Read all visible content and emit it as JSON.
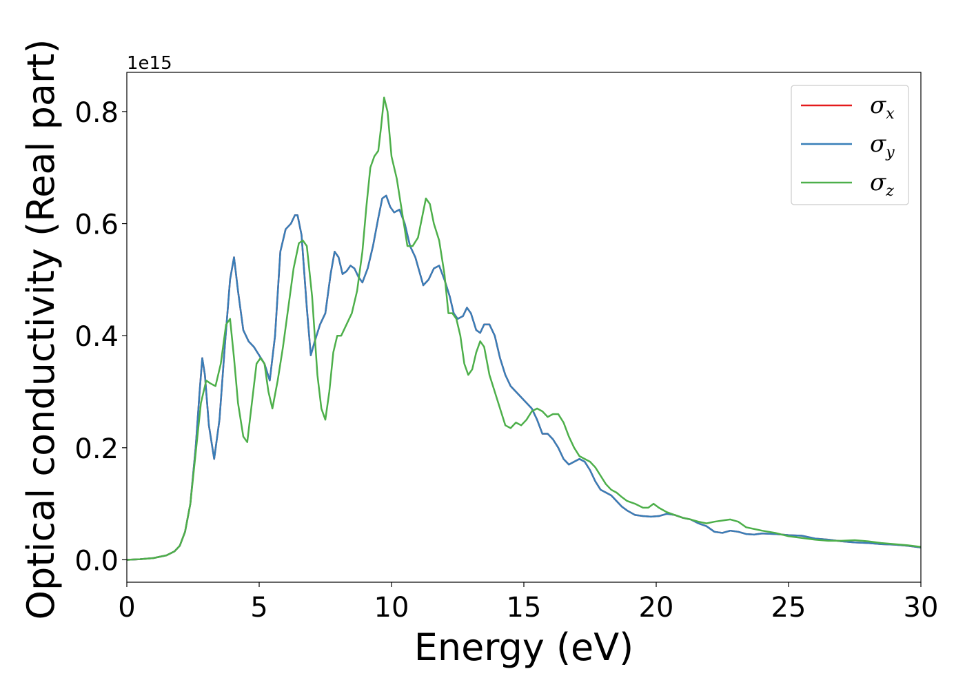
{
  "chart_data": {
    "type": "line",
    "title": "",
    "xlabel": "Energy (eV)",
    "ylabel": "Optical conductivity (Real part)",
    "y_offset_label": "1e15",
    "xlim": [
      0,
      30
    ],
    "ylim": [
      -0.04,
      0.87
    ],
    "xticks": [
      0,
      5,
      10,
      15,
      20,
      25,
      30
    ],
    "xtick_labels": [
      "0",
      "5",
      "10",
      "15",
      "20",
      "25",
      "30"
    ],
    "yticks": [
      0.0,
      0.2,
      0.4,
      0.6,
      0.8
    ],
    "ytick_labels": [
      "0.0",
      "0.2",
      "0.4",
      "0.6",
      "0.8"
    ],
    "grid": false,
    "legend_position": "top-right",
    "series": [
      {
        "name": "σx",
        "symbol": "σ",
        "subscript": "x",
        "color": "#e41a1c",
        "x": [
          0,
          0.5,
          1.0,
          1.5,
          1.8,
          2.0,
          2.2,
          2.4,
          2.6,
          2.75,
          2.85,
          2.95,
          3.1,
          3.3,
          3.5,
          3.7,
          3.9,
          4.05,
          4.2,
          4.4,
          4.6,
          4.8,
          5.0,
          5.2,
          5.4,
          5.6,
          5.8,
          6.0,
          6.2,
          6.35,
          6.45,
          6.6,
          6.8,
          6.95,
          7.1,
          7.3,
          7.5,
          7.7,
          7.85,
          8.0,
          8.15,
          8.3,
          8.45,
          8.6,
          8.75,
          8.9,
          9.1,
          9.3,
          9.5,
          9.65,
          9.8,
          9.95,
          10.1,
          10.3,
          10.5,
          10.7,
          10.9,
          11.05,
          11.2,
          11.4,
          11.6,
          11.8,
          12.0,
          12.2,
          12.35,
          12.5,
          12.7,
          12.85,
          13.0,
          13.2,
          13.35,
          13.5,
          13.7,
          13.9,
          14.1,
          14.3,
          14.5,
          14.7,
          14.9,
          15.1,
          15.3,
          15.5,
          15.7,
          15.9,
          16.1,
          16.3,
          16.5,
          16.7,
          16.9,
          17.1,
          17.3,
          17.5,
          17.7,
          17.9,
          18.1,
          18.3,
          18.5,
          18.7,
          18.9,
          19.2,
          19.5,
          19.8,
          20.1,
          20.4,
          20.7,
          21.0,
          21.3,
          21.6,
          21.9,
          22.2,
          22.5,
          22.8,
          23.1,
          23.4,
          23.7,
          24.0,
          24.5,
          25.0,
          25.5,
          26.0,
          26.5,
          27.0,
          27.5,
          28.0,
          28.5,
          29.0,
          29.5,
          30.0
        ],
        "y": [
          0.0,
          0.001,
          0.003,
          0.008,
          0.015,
          0.025,
          0.05,
          0.1,
          0.2,
          0.3,
          0.36,
          0.33,
          0.24,
          0.18,
          0.25,
          0.38,
          0.5,
          0.54,
          0.48,
          0.41,
          0.39,
          0.38,
          0.365,
          0.35,
          0.32,
          0.4,
          0.55,
          0.59,
          0.6,
          0.615,
          0.615,
          0.58,
          0.45,
          0.365,
          0.39,
          0.42,
          0.44,
          0.51,
          0.55,
          0.54,
          0.51,
          0.515,
          0.525,
          0.52,
          0.505,
          0.495,
          0.52,
          0.56,
          0.61,
          0.645,
          0.65,
          0.63,
          0.62,
          0.625,
          0.6,
          0.56,
          0.54,
          0.515,
          0.49,
          0.5,
          0.52,
          0.525,
          0.5,
          0.47,
          0.44,
          0.43,
          0.435,
          0.45,
          0.44,
          0.41,
          0.405,
          0.42,
          0.42,
          0.4,
          0.36,
          0.33,
          0.31,
          0.3,
          0.29,
          0.28,
          0.27,
          0.25,
          0.225,
          0.225,
          0.215,
          0.2,
          0.18,
          0.17,
          0.175,
          0.18,
          0.175,
          0.16,
          0.14,
          0.125,
          0.12,
          0.115,
          0.105,
          0.095,
          0.088,
          0.08,
          0.078,
          0.077,
          0.078,
          0.082,
          0.08,
          0.075,
          0.072,
          0.065,
          0.06,
          0.05,
          0.048,
          0.052,
          0.05,
          0.046,
          0.045,
          0.047,
          0.046,
          0.044,
          0.043,
          0.038,
          0.036,
          0.033,
          0.031,
          0.03,
          0.028,
          0.027,
          0.025,
          0.022
        ]
      },
      {
        "name": "σy",
        "symbol": "σ",
        "subscript": "y",
        "color": "#377eb8",
        "x": [
          0,
          0.5,
          1.0,
          1.5,
          1.8,
          2.0,
          2.2,
          2.4,
          2.6,
          2.75,
          2.85,
          2.95,
          3.1,
          3.3,
          3.5,
          3.7,
          3.9,
          4.05,
          4.2,
          4.4,
          4.6,
          4.8,
          5.0,
          5.2,
          5.4,
          5.6,
          5.8,
          6.0,
          6.2,
          6.35,
          6.45,
          6.6,
          6.8,
          6.95,
          7.1,
          7.3,
          7.5,
          7.7,
          7.85,
          8.0,
          8.15,
          8.3,
          8.45,
          8.6,
          8.75,
          8.9,
          9.1,
          9.3,
          9.5,
          9.65,
          9.8,
          9.95,
          10.1,
          10.3,
          10.5,
          10.7,
          10.9,
          11.05,
          11.2,
          11.4,
          11.6,
          11.8,
          12.0,
          12.2,
          12.35,
          12.5,
          12.7,
          12.85,
          13.0,
          13.2,
          13.35,
          13.5,
          13.7,
          13.9,
          14.1,
          14.3,
          14.5,
          14.7,
          14.9,
          15.1,
          15.3,
          15.5,
          15.7,
          15.9,
          16.1,
          16.3,
          16.5,
          16.7,
          16.9,
          17.1,
          17.3,
          17.5,
          17.7,
          17.9,
          18.1,
          18.3,
          18.5,
          18.7,
          18.9,
          19.2,
          19.5,
          19.8,
          20.1,
          20.4,
          20.7,
          21.0,
          21.3,
          21.6,
          21.9,
          22.2,
          22.5,
          22.8,
          23.1,
          23.4,
          23.7,
          24.0,
          24.5,
          25.0,
          25.5,
          26.0,
          26.5,
          27.0,
          27.5,
          28.0,
          28.5,
          29.0,
          29.5,
          30.0
        ],
        "y": [
          0.0,
          0.001,
          0.003,
          0.008,
          0.015,
          0.025,
          0.05,
          0.1,
          0.2,
          0.3,
          0.36,
          0.33,
          0.24,
          0.18,
          0.25,
          0.38,
          0.5,
          0.54,
          0.48,
          0.41,
          0.39,
          0.38,
          0.365,
          0.35,
          0.32,
          0.4,
          0.55,
          0.59,
          0.6,
          0.615,
          0.615,
          0.58,
          0.45,
          0.365,
          0.39,
          0.42,
          0.44,
          0.51,
          0.55,
          0.54,
          0.51,
          0.515,
          0.525,
          0.52,
          0.505,
          0.495,
          0.52,
          0.56,
          0.61,
          0.645,
          0.65,
          0.63,
          0.62,
          0.625,
          0.6,
          0.56,
          0.54,
          0.515,
          0.49,
          0.5,
          0.52,
          0.525,
          0.5,
          0.47,
          0.44,
          0.43,
          0.435,
          0.45,
          0.44,
          0.41,
          0.405,
          0.42,
          0.42,
          0.4,
          0.36,
          0.33,
          0.31,
          0.3,
          0.29,
          0.28,
          0.27,
          0.25,
          0.225,
          0.225,
          0.215,
          0.2,
          0.18,
          0.17,
          0.175,
          0.18,
          0.175,
          0.16,
          0.14,
          0.125,
          0.12,
          0.115,
          0.105,
          0.095,
          0.088,
          0.08,
          0.078,
          0.077,
          0.078,
          0.082,
          0.08,
          0.075,
          0.072,
          0.065,
          0.06,
          0.05,
          0.048,
          0.052,
          0.05,
          0.046,
          0.045,
          0.047,
          0.046,
          0.044,
          0.043,
          0.038,
          0.036,
          0.033,
          0.031,
          0.03,
          0.028,
          0.027,
          0.025,
          0.022
        ]
      },
      {
        "name": "σz",
        "symbol": "σ",
        "subscript": "z",
        "color": "#4daf4a",
        "x": [
          0,
          0.5,
          1.0,
          1.5,
          1.8,
          2.0,
          2.2,
          2.4,
          2.6,
          2.8,
          3.0,
          3.15,
          3.35,
          3.55,
          3.75,
          3.9,
          4.05,
          4.2,
          4.4,
          4.55,
          4.75,
          4.9,
          5.05,
          5.2,
          5.35,
          5.5,
          5.7,
          5.9,
          6.1,
          6.3,
          6.5,
          6.65,
          6.8,
          7.0,
          7.2,
          7.35,
          7.5,
          7.65,
          7.8,
          7.95,
          8.1,
          8.3,
          8.5,
          8.7,
          8.9,
          9.05,
          9.2,
          9.35,
          9.5,
          9.6,
          9.72,
          9.85,
          10.0,
          10.2,
          10.4,
          10.6,
          10.8,
          11.0,
          11.15,
          11.3,
          11.45,
          11.6,
          11.8,
          12.0,
          12.15,
          12.3,
          12.45,
          12.6,
          12.75,
          12.9,
          13.05,
          13.2,
          13.35,
          13.5,
          13.7,
          13.9,
          14.1,
          14.3,
          14.5,
          14.7,
          14.9,
          15.1,
          15.3,
          15.5,
          15.7,
          15.9,
          16.1,
          16.3,
          16.5,
          16.7,
          16.9,
          17.1,
          17.3,
          17.5,
          17.7,
          17.9,
          18.1,
          18.3,
          18.5,
          18.7,
          18.9,
          19.2,
          19.5,
          19.7,
          19.9,
          20.1,
          20.4,
          20.7,
          21.0,
          21.3,
          21.6,
          21.9,
          22.2,
          22.5,
          22.8,
          23.1,
          23.4,
          23.7,
          24.0,
          24.5,
          25.0,
          25.5,
          26.0,
          26.5,
          27.0,
          27.5,
          28.0,
          28.5,
          29.0,
          29.5,
          30.0
        ],
        "y": [
          0.0,
          0.001,
          0.003,
          0.008,
          0.015,
          0.025,
          0.05,
          0.1,
          0.19,
          0.28,
          0.32,
          0.315,
          0.31,
          0.35,
          0.42,
          0.43,
          0.36,
          0.28,
          0.22,
          0.21,
          0.29,
          0.35,
          0.36,
          0.35,
          0.3,
          0.27,
          0.32,
          0.38,
          0.45,
          0.52,
          0.565,
          0.57,
          0.56,
          0.47,
          0.33,
          0.27,
          0.25,
          0.3,
          0.37,
          0.4,
          0.4,
          0.42,
          0.44,
          0.48,
          0.55,
          0.63,
          0.7,
          0.72,
          0.73,
          0.77,
          0.825,
          0.8,
          0.72,
          0.68,
          0.62,
          0.56,
          0.56,
          0.575,
          0.61,
          0.645,
          0.635,
          0.6,
          0.57,
          0.51,
          0.44,
          0.44,
          0.43,
          0.4,
          0.35,
          0.33,
          0.34,
          0.37,
          0.39,
          0.38,
          0.33,
          0.3,
          0.27,
          0.24,
          0.235,
          0.245,
          0.24,
          0.25,
          0.265,
          0.27,
          0.265,
          0.255,
          0.26,
          0.26,
          0.245,
          0.22,
          0.2,
          0.185,
          0.18,
          0.175,
          0.165,
          0.15,
          0.135,
          0.125,
          0.12,
          0.112,
          0.105,
          0.1,
          0.093,
          0.093,
          0.1,
          0.093,
          0.085,
          0.08,
          0.075,
          0.072,
          0.068,
          0.065,
          0.068,
          0.07,
          0.072,
          0.068,
          0.058,
          0.055,
          0.052,
          0.048,
          0.042,
          0.039,
          0.036,
          0.034,
          0.034,
          0.035,
          0.033,
          0.03,
          0.028,
          0.026,
          0.023
        ]
      }
    ]
  }
}
